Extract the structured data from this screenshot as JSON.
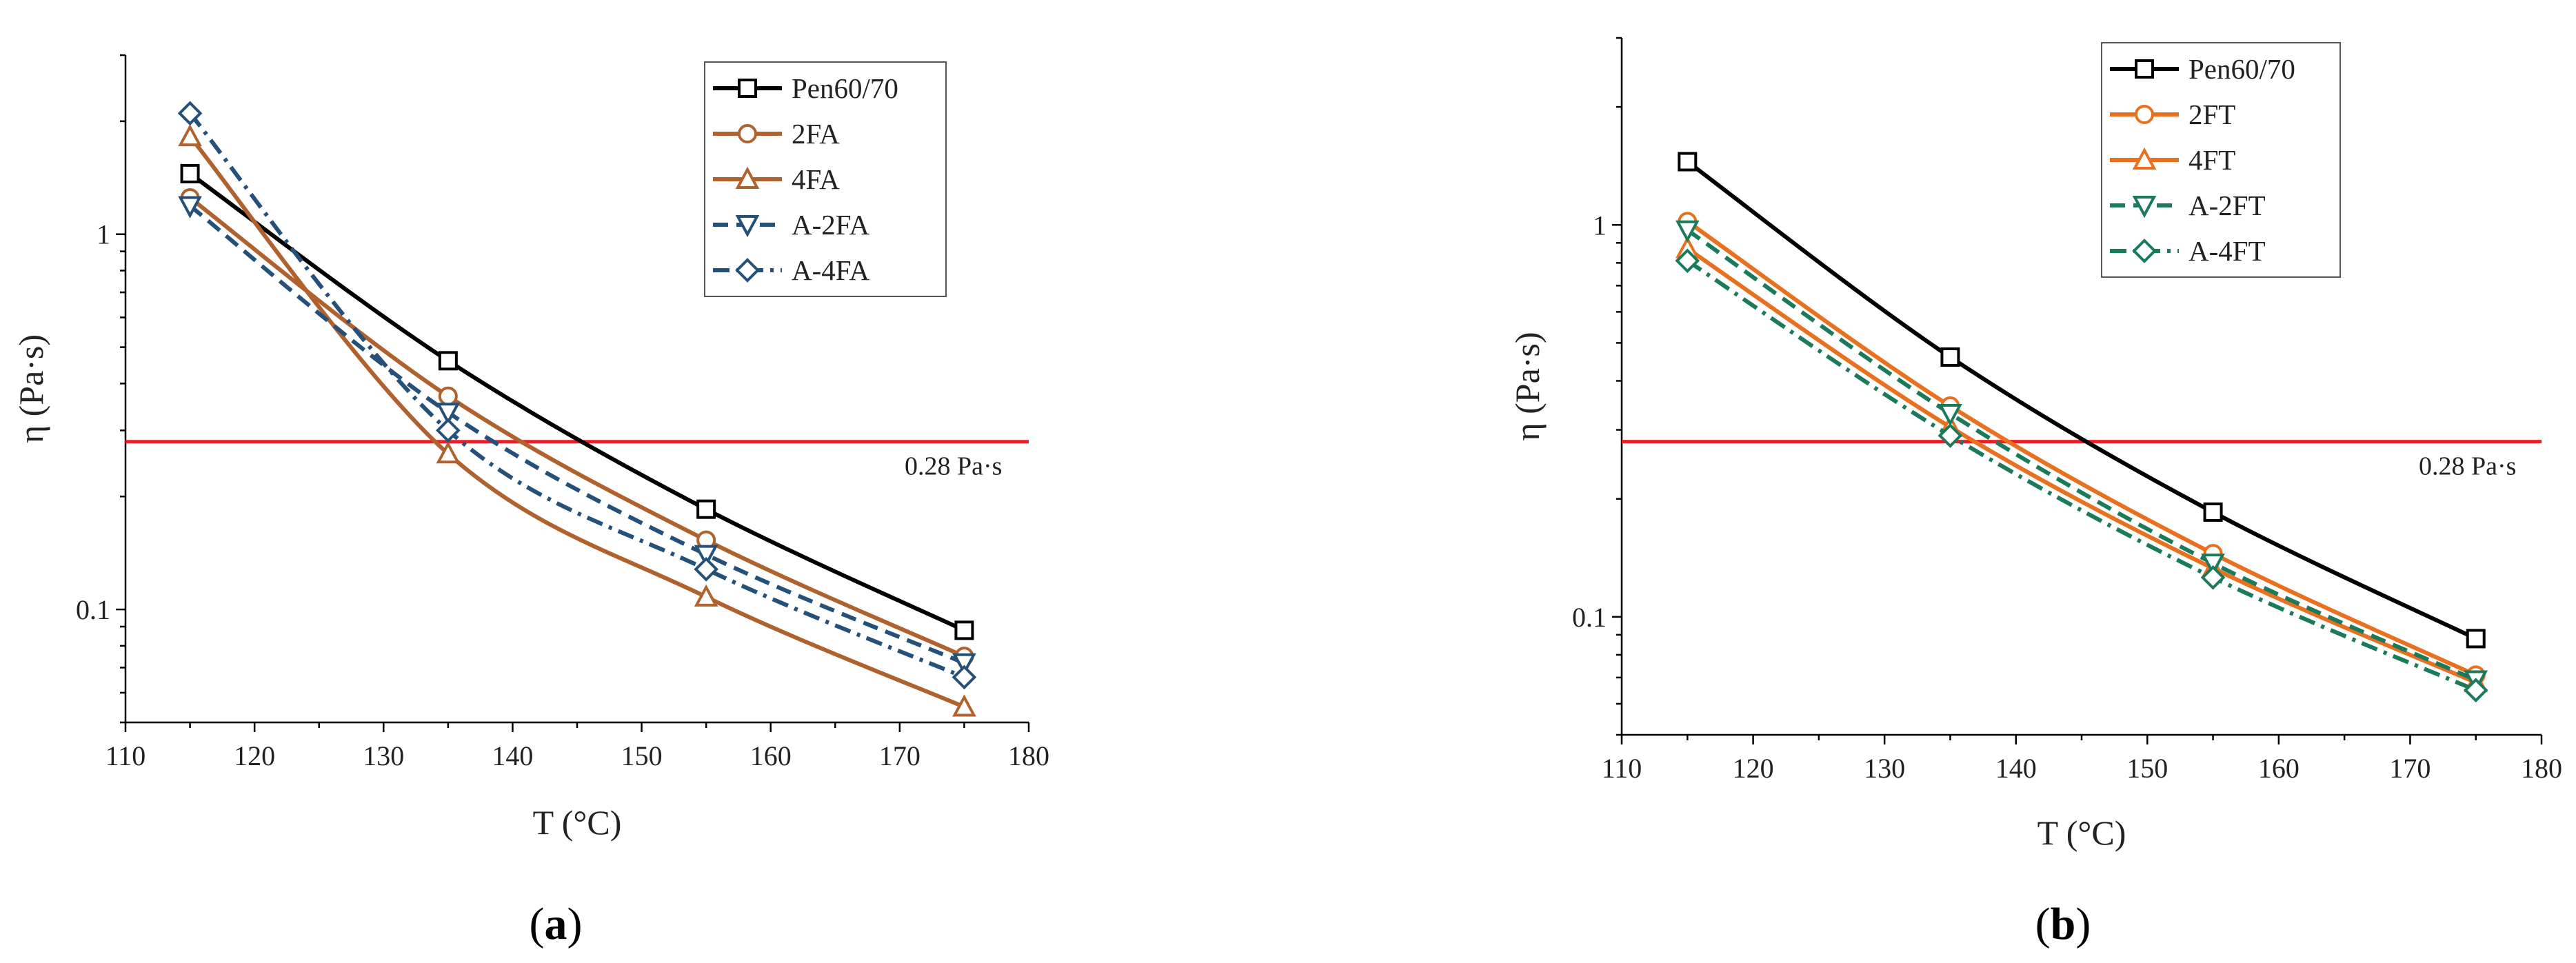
{
  "chart_data": [
    {
      "type": "line",
      "panel_label": "a",
      "xlabel": "T (°C)",
      "ylabel": "η (Pa·s)",
      "xlim": [
        110,
        180
      ],
      "xticks": [
        110,
        120,
        130,
        140,
        150,
        160,
        170,
        180
      ],
      "ylim": [
        0.05,
        3
      ],
      "yscale": "log",
      "yticks": [
        {
          "value": 0.1,
          "label": "0.1"
        },
        {
          "value": 1,
          "label": "1"
        }
      ],
      "reference_line": {
        "value": 0.28,
        "label": "0.28 Pa·s",
        "color": "#e8202a"
      },
      "legend_position": "top-right",
      "series": [
        {
          "name": "Pen60/70",
          "x": [
            115,
            135,
            155,
            175
          ],
          "y": [
            1.45,
            0.46,
            0.185,
            0.088
          ],
          "color": "#000000",
          "marker": "square",
          "dash": "solid"
        },
        {
          "name": "2FA",
          "x": [
            115,
            135,
            155,
            175
          ],
          "y": [
            1.25,
            0.37,
            0.153,
            0.075
          ],
          "color": "#b0622e",
          "marker": "circle",
          "dash": "solid"
        },
        {
          "name": "4FA",
          "x": [
            115,
            135,
            155,
            175
          ],
          "y": [
            1.82,
            0.26,
            0.108,
            0.055
          ],
          "color": "#b0622e",
          "marker": "triangle-up",
          "dash": "solid"
        },
        {
          "name": "A-2FA",
          "x": [
            115,
            135,
            155,
            175
          ],
          "y": [
            1.19,
            0.335,
            0.14,
            0.072
          ],
          "color": "#24507a",
          "marker": "triangle-down",
          "dash": "dash"
        },
        {
          "name": "A-4FA",
          "x": [
            115,
            135,
            155,
            175
          ],
          "y": [
            2.1,
            0.3,
            0.128,
            0.066
          ],
          "color": "#24507a",
          "marker": "diamond",
          "dash": "dashdot"
        }
      ]
    },
    {
      "type": "line",
      "panel_label": "b",
      "xlabel": "T (°C)",
      "ylabel": "η (Pa·s)",
      "xlim": [
        110,
        180
      ],
      "xticks": [
        110,
        120,
        130,
        140,
        150,
        160,
        170,
        180
      ],
      "ylim": [
        0.05,
        3
      ],
      "yscale": "log",
      "yticks": [
        {
          "value": 0.1,
          "label": "0.1"
        },
        {
          "value": 1,
          "label": "1"
        }
      ],
      "reference_line": {
        "value": 0.28,
        "label": "0.28 Pa·s",
        "color": "#e8202a"
      },
      "legend_position": "top-left",
      "series": [
        {
          "name": "Pen60/70",
          "x": [
            115,
            135,
            155,
            175
          ],
          "y": [
            1.45,
            0.46,
            0.185,
            0.088
          ],
          "color": "#000000",
          "marker": "square",
          "dash": "solid"
        },
        {
          "name": "2FT",
          "x": [
            115,
            135,
            155,
            175
          ],
          "y": [
            1.02,
            0.345,
            0.145,
            0.071
          ],
          "color": "#e8701f",
          "marker": "circle",
          "dash": "solid"
        },
        {
          "name": "4FT",
          "x": [
            115,
            135,
            155,
            175
          ],
          "y": [
            0.87,
            0.305,
            0.133,
            0.068
          ],
          "color": "#e8701f",
          "marker": "triangle-up",
          "dash": "solid"
        },
        {
          "name": "A-2FT",
          "x": [
            115,
            135,
            155,
            175
          ],
          "y": [
            0.97,
            0.33,
            0.137,
            0.069
          ],
          "color": "#1a7a5a",
          "marker": "triangle-down",
          "dash": "dash"
        },
        {
          "name": "A-4FT",
          "x": [
            115,
            135,
            155,
            175
          ],
          "y": [
            0.81,
            0.29,
            0.126,
            0.065
          ],
          "color": "#1a7a5a",
          "marker": "diamond",
          "dash": "dashdot"
        }
      ]
    }
  ]
}
